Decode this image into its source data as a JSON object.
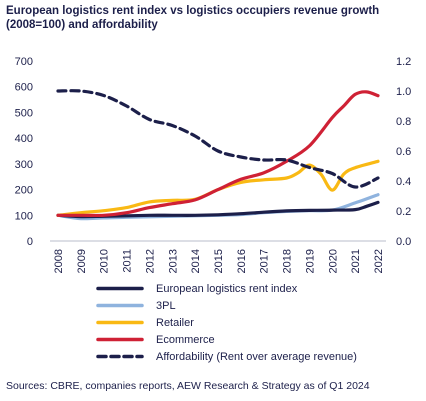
{
  "chart_data": {
    "type": "line",
    "title": "European logistics rent index vs logistics occupiers revenue growth (2008=100) and affordability",
    "x": [
      "2008",
      "2009",
      "2010",
      "2011",
      "2012",
      "2013",
      "2014",
      "2015",
      "2016",
      "2017",
      "2018",
      "2019",
      "2020",
      "2021",
      "2022"
    ],
    "y_left": {
      "ylim": [
        0,
        700
      ],
      "ticks": [
        "0",
        "100",
        "200",
        "300",
        "400",
        "500",
        "600",
        "700"
      ]
    },
    "y_right": {
      "ylim": [
        0,
        1.2
      ],
      "ticks": [
        "0.0",
        "0.2",
        "0.4",
        "0.6",
        "0.8",
        "1.0",
        "1.2"
      ]
    },
    "grid": false,
    "legend_position": "bottom",
    "series": [
      {
        "name": "European logistics rent index",
        "axis": "left",
        "color": "#1c1f4a",
        "dash": false,
        "x": [
          2008,
          2009,
          2010,
          2011,
          2012,
          2013,
          2014,
          2015,
          2016,
          2017,
          2018,
          2019,
          2020,
          2021,
          2021.5,
          2022
        ],
        "values": [
          100,
          95,
          96,
          98,
          100,
          100,
          100,
          102,
          106,
          112,
          117,
          119,
          120,
          122,
          135,
          150
        ]
      },
      {
        "name": "3PL",
        "axis": "left",
        "color": "#8fb3de",
        "dash": false,
        "x": [
          2008,
          2009,
          2010,
          2011,
          2012,
          2013,
          2014,
          2015,
          2016,
          2017,
          2018,
          2019,
          2020,
          2021,
          2022
        ],
        "values": [
          100,
          87,
          90,
          92,
          94,
          96,
          98,
          100,
          103,
          110,
          115,
          118,
          120,
          148,
          180
        ]
      },
      {
        "name": "Retailer",
        "axis": "left",
        "color": "#f9b914",
        "dash": false,
        "x": [
          2008,
          2009,
          2010,
          2011,
          2012,
          2013,
          2014,
          2015,
          2016,
          2017,
          2018,
          2018.5,
          2019,
          2019.5,
          2020,
          2020.5,
          2021,
          2022
        ],
        "values": [
          100,
          110,
          118,
          130,
          152,
          158,
          162,
          200,
          228,
          238,
          245,
          265,
          295,
          260,
          198,
          260,
          285,
          310
        ]
      },
      {
        "name": "Ecommerce",
        "axis": "left",
        "color": "#cf2135",
        "dash": false,
        "x": [
          2008,
          2009,
          2010,
          2011,
          2012,
          2013,
          2014,
          2015,
          2016,
          2017,
          2018,
          2019,
          2020,
          2020.5,
          2021,
          2021.5,
          2022
        ],
        "values": [
          100,
          100,
          100,
          110,
          130,
          145,
          160,
          200,
          240,
          265,
          310,
          370,
          480,
          525,
          570,
          580,
          565
        ]
      },
      {
        "name": "Affordability (Rent over average revenue)",
        "axis": "right",
        "color": "#1c1f4a",
        "dash": true,
        "x": [
          2008,
          2009,
          2010,
          2011,
          2012,
          2013,
          2014,
          2015,
          2016,
          2017,
          2018,
          2019,
          2020,
          2021,
          2022
        ],
        "values": [
          1.0,
          1.0,
          0.97,
          0.9,
          0.81,
          0.77,
          0.7,
          0.6,
          0.56,
          0.54,
          0.54,
          0.49,
          0.45,
          0.36,
          0.42
        ]
      }
    ]
  },
  "source": "Sources: CBRE, companies reports,  AEW Research & Strategy as of Q1 2024"
}
